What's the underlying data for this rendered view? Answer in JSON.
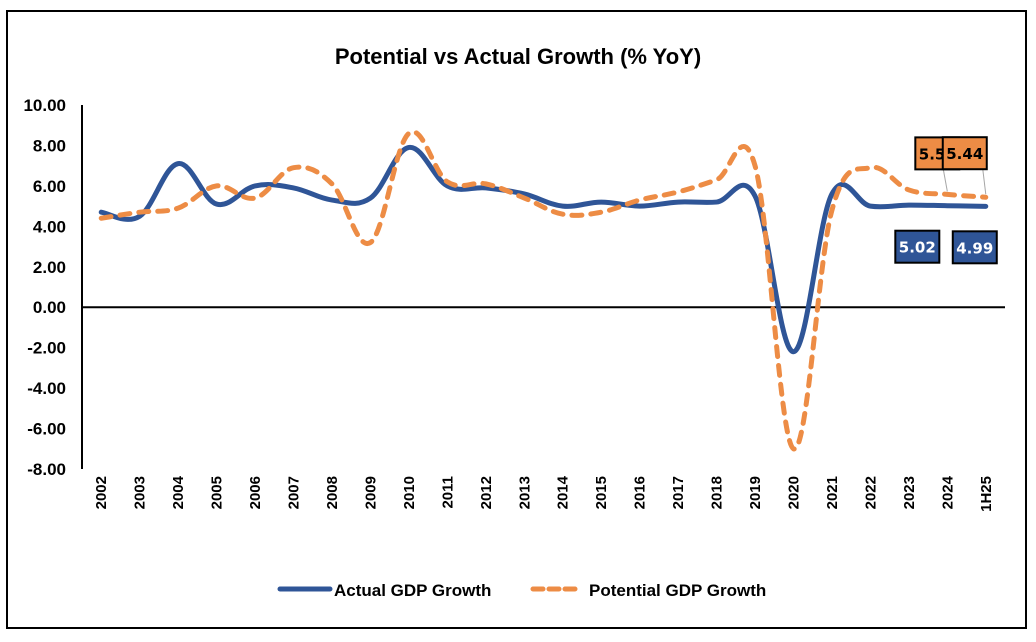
{
  "chart_data": {
    "type": "line",
    "title": "Potential vs Actual Growth (% YoY)",
    "xlabel": "",
    "ylabel": "",
    "ylim": [
      -8,
      10
    ],
    "yticks": [
      "10.00",
      "8.00",
      "6.00",
      "4.00",
      "2.00",
      "0.00",
      "-2.00",
      "-4.00",
      "-6.00",
      "-8.00"
    ],
    "ytick_values": [
      10,
      8,
      6,
      4,
      2,
      0,
      -2,
      -4,
      -6,
      -8
    ],
    "grid": false,
    "legend_position": "bottom",
    "categories": [
      "2002",
      "2003",
      "2004",
      "2005",
      "2006",
      "2007",
      "2008",
      "2009",
      "2010",
      "2011",
      "2012",
      "2013",
      "2014",
      "2015",
      "2016",
      "2017",
      "2018",
      "2019",
      "2020",
      "2021",
      "2022",
      "2023",
      "2024",
      "1H25"
    ],
    "series": [
      {
        "name": "Actual GDP Growth",
        "color": "#2F5597",
        "style": "solid",
        "values": [
          4.7,
          4.5,
          7.1,
          5.1,
          6.0,
          5.9,
          5.3,
          5.4,
          7.9,
          6.0,
          5.9,
          5.6,
          5.0,
          5.2,
          5.0,
          5.2,
          5.2,
          5.5,
          -2.2,
          5.6,
          5.0,
          5.05,
          5.02,
          4.99
        ]
      },
      {
        "name": "Potential GDP Growth",
        "color": "#ED8C45",
        "style": "dashed",
        "values": [
          4.4,
          4.7,
          4.9,
          6.0,
          5.4,
          6.9,
          6.1,
          3.2,
          8.6,
          6.2,
          6.1,
          5.4,
          4.6,
          4.7,
          5.3,
          5.7,
          6.3,
          7.0,
          -7.0,
          4.8,
          6.9,
          5.8,
          5.58,
          5.44
        ]
      }
    ],
    "data_labels": [
      {
        "series": 1,
        "category": "2024",
        "text": "5.58",
        "bg": "#ED8C45",
        "fg": "#000000"
      },
      {
        "series": 1,
        "category": "1H25",
        "text": "5.44",
        "bg": "#ED8C45",
        "fg": "#000000"
      },
      {
        "series": 0,
        "category": "2024",
        "text": "5.02",
        "bg": "#2F5597",
        "fg": "#FFFFFF"
      },
      {
        "series": 0,
        "category": "1H25",
        "text": "4.99",
        "bg": "#2F5597",
        "fg": "#FFFFFF"
      }
    ]
  }
}
